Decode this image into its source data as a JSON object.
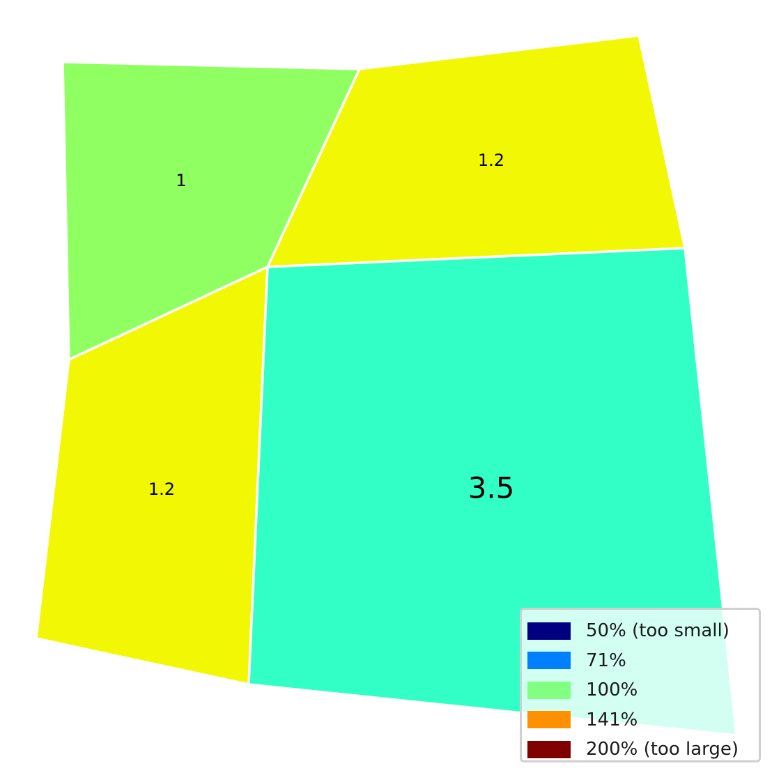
{
  "cells": [
    {
      "id": "top-left",
      "label": "1",
      "color": "#8fff62",
      "size": "small"
    },
    {
      "id": "top-right",
      "label": "1.2",
      "color": "#f2f704",
      "size": "small"
    },
    {
      "id": "bottom-left",
      "label": "1.2",
      "color": "#f2f704",
      "size": "small"
    },
    {
      "id": "bottom-right",
      "label": "3.5",
      "color": "#32ffc5",
      "size": "large"
    }
  ],
  "legend": {
    "entries": [
      {
        "label": "50% (too small)",
        "color": "#000080"
      },
      {
        "label": "71%",
        "color": "#0080ff"
      },
      {
        "label": "100%",
        "color": "#80ff80"
      },
      {
        "label": "141%",
        "color": "#ff9100"
      },
      {
        "label": "200% (too large)",
        "color": "#800000"
      }
    ]
  }
}
